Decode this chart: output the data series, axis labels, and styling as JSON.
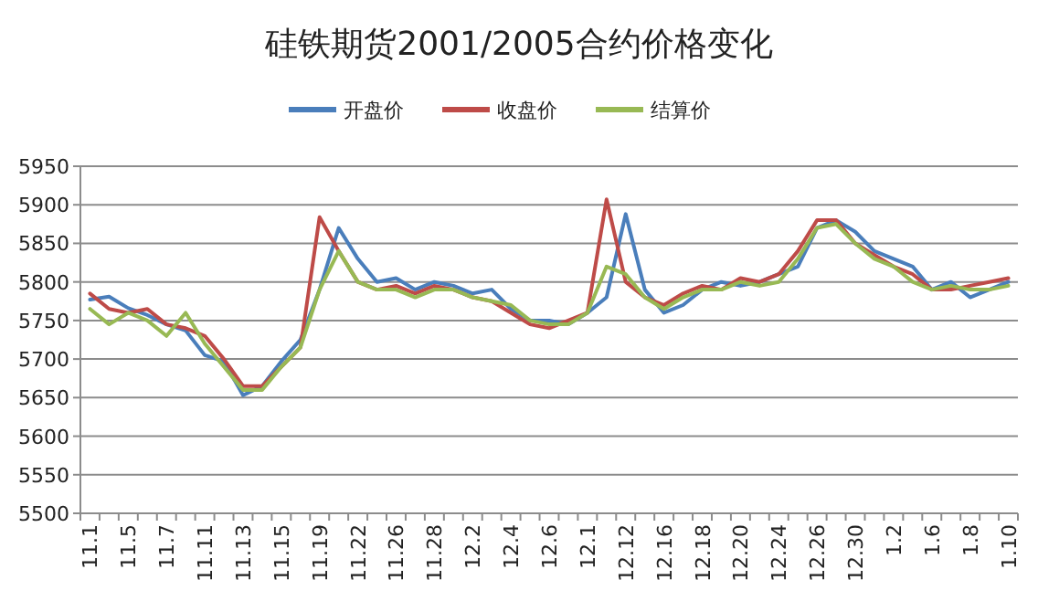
{
  "chart_data": {
    "type": "line",
    "title": "硅铁期货2001/2005合约价格变化",
    "categories": [
      "11.1",
      null,
      "11.5",
      null,
      "11.7",
      null,
      "11.11",
      null,
      "11.13",
      null,
      "11.15",
      null,
      "11.19",
      null,
      "11.22",
      null,
      "11.26",
      null,
      "11.28",
      null,
      "12.2",
      null,
      "12.4",
      null,
      "12.6",
      null,
      "12.1",
      null,
      "12.12",
      null,
      "12.16",
      null,
      "12.18",
      null,
      "12.20",
      null,
      "12.24",
      null,
      "12.26",
      null,
      "12.30",
      null,
      "1.2",
      null,
      "1.6",
      null,
      "1.8",
      null,
      "1.10"
    ],
    "series": [
      {
        "name": "开盘价",
        "color": "#4a7ebb",
        "values": [
          5777,
          5781,
          5766,
          5757,
          5745,
          5737,
          5705,
          5697,
          5653,
          5665,
          5697,
          5725,
          5790,
          5870,
          5830,
          5800,
          5805,
          5790,
          5800,
          5795,
          5785,
          5790,
          5765,
          5750,
          5750,
          5745,
          5760,
          5780,
          5888,
          5790,
          5760,
          5770,
          5790,
          5800,
          5795,
          5800,
          5810,
          5820,
          5870,
          5880,
          5865,
          5840,
          5830,
          5820,
          5790,
          5800,
          5780,
          5790,
          5800
        ]
      },
      {
        "name": "收盘价",
        "color": "#be4b48",
        "values": [
          5785,
          5765,
          5760,
          5765,
          5745,
          5740,
          5730,
          5700,
          5665,
          5665,
          5690,
          5715,
          5884,
          5840,
          5800,
          5790,
          5795,
          5785,
          5795,
          5790,
          5780,
          5775,
          5760,
          5745,
          5740,
          5750,
          5760,
          5907,
          5800,
          5780,
          5770,
          5785,
          5795,
          5790,
          5805,
          5800,
          5810,
          5840,
          5880,
          5880,
          5850,
          5835,
          5820,
          5810,
          5790,
          5790,
          5795,
          5800,
          5805
        ]
      },
      {
        "name": "结算价",
        "color": "#98b954",
        "values": [
          5765,
          5745,
          5760,
          5750,
          5730,
          5760,
          5720,
          5690,
          5660,
          5660,
          5690,
          5715,
          5790,
          5840,
          5800,
          5790,
          5790,
          5780,
          5790,
          5790,
          5780,
          5775,
          5770,
          5750,
          5745,
          5745,
          5760,
          5820,
          5810,
          5780,
          5765,
          5780,
          5790,
          5790,
          5800,
          5795,
          5800,
          5830,
          5870,
          5875,
          5850,
          5830,
          5820,
          5800,
          5790,
          5795,
          5790,
          5790,
          5795
        ]
      }
    ],
    "ylim": [
      5500,
      5950
    ],
    "yticks": [
      5500,
      5550,
      5600,
      5650,
      5700,
      5750,
      5800,
      5850,
      5900,
      5950
    ],
    "grid": "y",
    "legend": "top",
    "marker": "none",
    "line_style": "solid"
  }
}
